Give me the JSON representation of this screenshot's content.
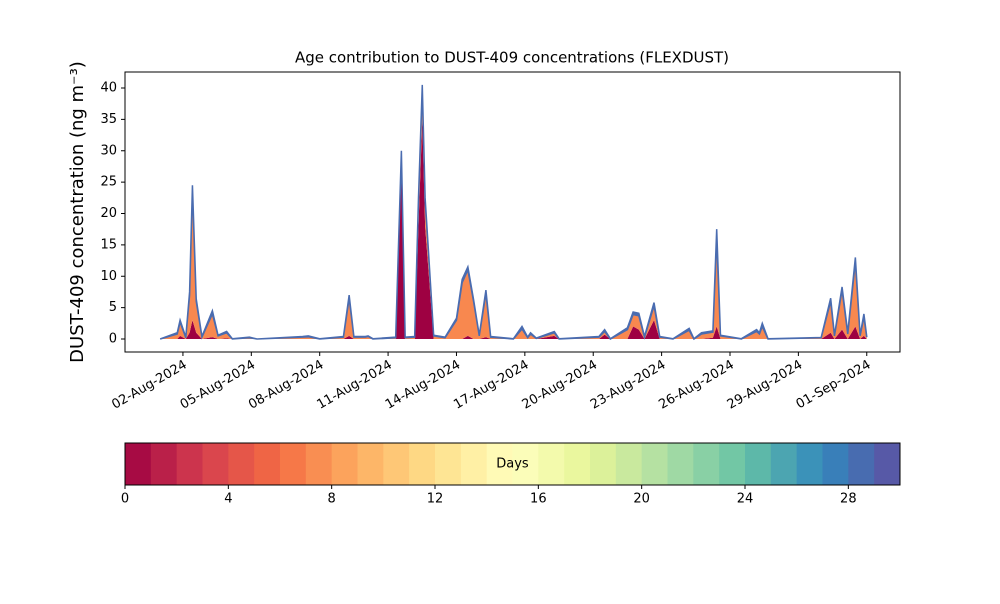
{
  "chart_data": {
    "type": "stacked_area",
    "title": "Age contribution to DUST-409 concentrations (FLEXDUST)",
    "y_label": "DUST-409 concentration (ng m⁻³)",
    "x": [
      "2024-08-01T00:00",
      "2024-08-01T18:00",
      "2024-08-01T21:00",
      "2024-08-02T03:00",
      "2024-08-02T07:00",
      "2024-08-02T10:00",
      "2024-08-02T14:00",
      "2024-08-02T20:00",
      "2024-08-03T07:00",
      "2024-08-03T13:00",
      "2024-08-03T22:00",
      "2024-08-04T04:00",
      "2024-08-04T22:00",
      "2024-08-05T06:00",
      "2024-08-07T06:00",
      "2024-08-07T12:00",
      "2024-08-08T00:00",
      "2024-08-09T01:00",
      "2024-08-09T07:00",
      "2024-08-09T12:00",
      "2024-08-10T00:00",
      "2024-08-10T03:00",
      "2024-08-10T08:00",
      "2024-08-11T08:00",
      "2024-08-11T14:00",
      "2024-08-11T18:00",
      "2024-08-12T04:00",
      "2024-08-12T08:00",
      "2024-08-12T12:00",
      "2024-08-12T15:00",
      "2024-08-12T18:00",
      "2024-08-13T00:00",
      "2024-08-13T12:00",
      "2024-08-14T00:00",
      "2024-08-14T06:00",
      "2024-08-14T12:00",
      "2024-08-14T18:00",
      "2024-08-15T00:00",
      "2024-08-15T07:00",
      "2024-08-15T12:00",
      "2024-08-16T12:00",
      "2024-08-16T21:00",
      "2024-08-17T03:00",
      "2024-08-17T06:00",
      "2024-08-17T12:00",
      "2024-08-18T07:00",
      "2024-08-18T12:00",
      "2024-08-20T06:00",
      "2024-08-20T12:00",
      "2024-08-20T18:00",
      "2024-08-21T12:00",
      "2024-08-21T18:00",
      "2024-08-22T00:00",
      "2024-08-22T06:00",
      "2024-08-22T16:00",
      "2024-08-22T22:00",
      "2024-08-23T12:00",
      "2024-08-24T05:00",
      "2024-08-24T10:00",
      "2024-08-24T18:00",
      "2024-08-25T06:00",
      "2024-08-25T10:00",
      "2024-08-25T14:00",
      "2024-08-26T12:00",
      "2024-08-27T04:00",
      "2024-08-27T07:00",
      "2024-08-27T10:00",
      "2024-08-27T16:00",
      "2024-08-30T00:00",
      "2024-08-30T10:00",
      "2024-08-30T14:00",
      "2024-08-30T22:00",
      "2024-08-31T04:00",
      "2024-08-31T12:00",
      "2024-08-31T17:00",
      "2024-08-31T21:00",
      "2024-09-01T00:00"
    ],
    "series": [
      {
        "color": "#9e0142",
        "values": [
          0,
          0,
          0.5,
          0,
          1,
          3,
          1,
          0,
          0.3,
          0,
          0.1,
          0,
          0,
          0,
          0,
          0,
          0,
          0,
          0.5,
          0,
          0,
          0,
          0,
          0,
          27,
          0,
          0,
          18,
          35,
          18,
          12,
          0,
          0,
          0,
          0,
          0.5,
          0,
          0,
          0.3,
          0,
          0,
          0,
          0,
          0,
          0,
          0.5,
          0,
          0,
          0.7,
          0,
          0,
          2,
          1.5,
          0,
          3,
          0,
          0,
          0,
          0,
          0,
          0.2,
          2,
          0,
          0,
          0,
          0,
          0,
          0,
          0,
          1,
          0,
          1.5,
          0,
          2,
          0,
          0.5,
          0
        ]
      },
      {
        "color": "#f8884f",
        "values": [
          0,
          0.8,
          2.2,
          0.2,
          6,
          20.8,
          5,
          0.3,
          3.7,
          0.5,
          0.9,
          0,
          0.2,
          0,
          0.3,
          0.35,
          0,
          0.3,
          6,
          0.3,
          0.3,
          0.4,
          0,
          0.2,
          2.5,
          0.2,
          0.3,
          4,
          5,
          4,
          3,
          0.5,
          0.2,
          3,
          9,
          10.5,
          6,
          0.5,
          7,
          0.3,
          0,
          1.6,
          0.2,
          0.8,
          0.1,
          0.5,
          0,
          0.3,
          0.5,
          0,
          1.5,
          1.9,
          2.2,
          0.3,
          2.3,
          0.3,
          0,
          1.4,
          0,
          0.8,
          0.9,
          14,
          0.5,
          0,
          1.2,
          0.8,
          2,
          0,
          0.2,
          5,
          0.5,
          6.3,
          0.8,
          10.3,
          0.5,
          3,
          0.3
        ]
      },
      {
        "color": "#4a6cb0",
        "values": [
          0,
          0.2,
          0.3,
          0.1,
          0.5,
          0.7,
          0.4,
          0.1,
          0.5,
          0.1,
          0.2,
          0.05,
          0.1,
          0,
          0.1,
          0.15,
          0.05,
          0.1,
          0.5,
          0.1,
          0.1,
          0.1,
          0.05,
          0.1,
          0.5,
          0.1,
          0.1,
          0.5,
          0.5,
          0.5,
          0.3,
          0.1,
          0.1,
          0.3,
          0.5,
          0.5,
          0.3,
          0.1,
          0.5,
          0.1,
          0.05,
          0.4,
          0.1,
          0.2,
          0.05,
          0.2,
          0.05,
          0.1,
          0.3,
          0.05,
          0.3,
          0.4,
          0.4,
          0.1,
          0.5,
          0.1,
          0.05,
          0.3,
          0.05,
          0.2,
          0.2,
          1.5,
          0.1,
          0.05,
          0.3,
          0.2,
          0.5,
          0.05,
          0.05,
          0.5,
          0.1,
          0.5,
          0.2,
          0.7,
          0.1,
          0.5,
          0.1
        ]
      }
    ],
    "xlim": [
      "2024-07-30T11:00",
      "2024-09-02T11:00"
    ],
    "xticks": [
      {
        "value": "2024-08-02",
        "label": "02-Aug-2024"
      },
      {
        "value": "2024-08-05",
        "label": "05-Aug-2024"
      },
      {
        "value": "2024-08-08",
        "label": "08-Aug-2024"
      },
      {
        "value": "2024-08-11",
        "label": "11-Aug-2024"
      },
      {
        "value": "2024-08-14",
        "label": "14-Aug-2024"
      },
      {
        "value": "2024-08-17",
        "label": "17-Aug-2024"
      },
      {
        "value": "2024-08-20",
        "label": "20-Aug-2024"
      },
      {
        "value": "2024-08-23",
        "label": "23-Aug-2024"
      },
      {
        "value": "2024-08-26",
        "label": "26-Aug-2024"
      },
      {
        "value": "2024-08-29",
        "label": "29-Aug-2024"
      },
      {
        "value": "2024-09-01",
        "label": "01-Sep-2024"
      }
    ],
    "ylim": [
      -2.07,
      42.55
    ],
    "yticks": [
      0,
      5,
      10,
      15,
      20,
      25,
      30,
      35,
      40
    ],
    "colorbar": {
      "label": "Days",
      "lim": [
        0,
        30
      ],
      "ticks": [
        0,
        4,
        8,
        12,
        16,
        20,
        24,
        28
      ],
      "levels": 30,
      "colormap": [
        "#9e0142",
        "#d53e4f",
        "#f46d43",
        "#fdae61",
        "#fee08b",
        "#ffffbf",
        "#e6f598",
        "#abdda4",
        "#66c2a5",
        "#3288bd",
        "#5e4fa2"
      ]
    }
  }
}
